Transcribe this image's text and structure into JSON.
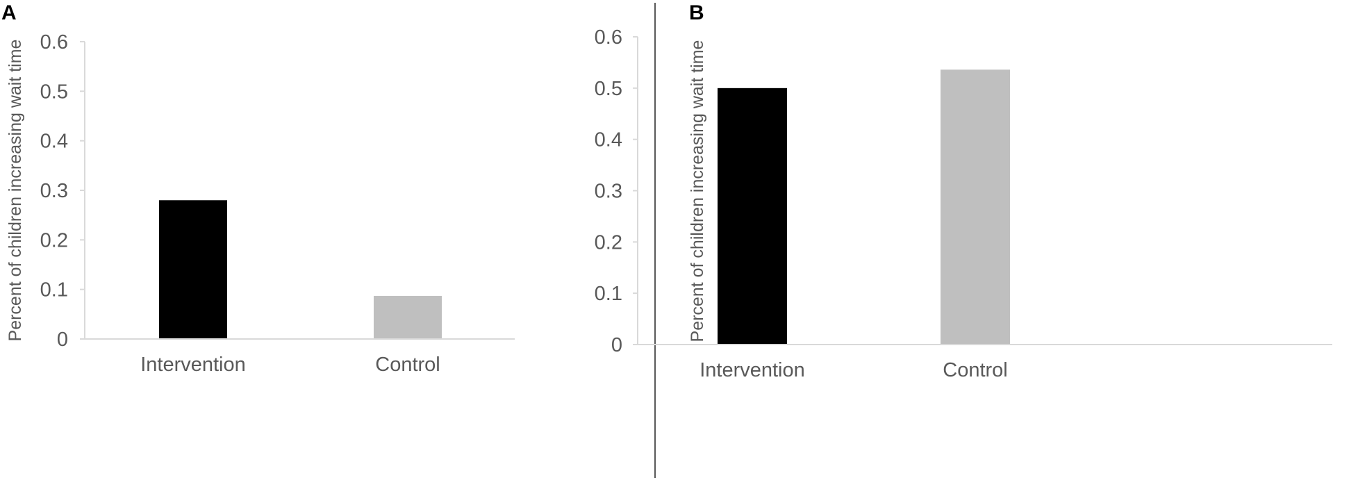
{
  "colors": {
    "background": "#ffffff",
    "axis": "#d9d9d9",
    "text": "#595959",
    "panel_label": "#000000",
    "divider": "#595959"
  },
  "chart_data": [
    {
      "panel_label": "A",
      "type": "bar",
      "title": "",
      "xlabel": "",
      "ylabel": "Percent of children increasing wait time",
      "categories": [
        "Intervention",
        "Control"
      ],
      "values": [
        0.28,
        0.087
      ],
      "bar_colors": [
        "#000000",
        "#bfbfbf"
      ],
      "ylim": [
        0,
        0.6
      ],
      "yticks": [
        0,
        0.1,
        0.2,
        0.3,
        0.4,
        0.5,
        0.6
      ],
      "ytick_labels": [
        "0",
        "0.1",
        "0.2",
        "0.3",
        "0.4",
        "0.5",
        "0.6"
      ],
      "grid": false,
      "legend": "none"
    },
    {
      "panel_label": "B",
      "type": "bar",
      "title": "",
      "xlabel": "",
      "ylabel": "Percent of children increasing wait time",
      "categories": [
        "Intervention",
        "Control"
      ],
      "values": [
        0.5,
        0.536
      ],
      "bar_colors": [
        "#000000",
        "#bfbfbf"
      ],
      "ylim": [
        0,
        0.6
      ],
      "yticks": [
        0,
        0.1,
        0.2,
        0.3,
        0.4,
        0.5,
        0.6
      ],
      "ytick_labels": [
        "0",
        "0.1",
        "0.2",
        "0.3",
        "0.4",
        "0.5",
        "0.6"
      ],
      "grid": false,
      "legend": "none"
    }
  ]
}
